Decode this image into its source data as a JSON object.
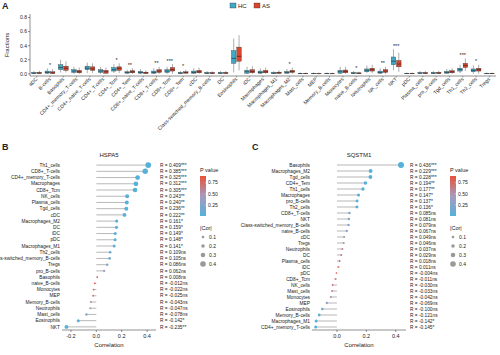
{
  "chart_data": [
    {
      "type": "box",
      "panel_label": "A",
      "y_label": "Fractions",
      "legend": "top",
      "categories": [
        "aDC",
        "B-cells",
        "Basophils",
        "CD4+_memory_T-cells",
        "CD4+_naive_T-cells",
        "CD4+_T-cells",
        "CD4+_Tcm",
        "CD4+_Tem",
        "CD8+_naive_T-cells",
        "CD8+_T-cells",
        "CD8+_Tcm",
        "CD8+_Tem",
        "cDC",
        "Class-switched_memory_B-cells",
        "DC",
        "Eosinophils",
        "iDC",
        "Macrophages",
        "Macrophages_M1",
        "Macrophages_M2",
        "Mast_cells",
        "MEP",
        "Memory_B-cells",
        "Monocytes",
        "naive_B-cells",
        "Neutrophils",
        "NK_cells",
        "NKT",
        "pDC",
        "Plasma_cells",
        "pro_B-cells",
        "Tgd_cells",
        "Th1_cells",
        "Th2_cells",
        "Tregs"
      ],
      "series": [
        {
          "name": "HC",
          "color": "#3fa8c6",
          "min": [
            0,
            0,
            0.02,
            0,
            0.01,
            0,
            0.01,
            0,
            0,
            0,
            0,
            0,
            0,
            0,
            0,
            0.02,
            0,
            0,
            0,
            0,
            0,
            0,
            0,
            0,
            0,
            0.01,
            0,
            0.05,
            0,
            0,
            0,
            0,
            0.01,
            0,
            0
          ],
          "q1": [
            0.005,
            0.01,
            0.06,
            0.02,
            0.06,
            0.02,
            0.04,
            0.01,
            0.01,
            0.01,
            0.02,
            0.005,
            0.01,
            0.005,
            0.005,
            0.15,
            0.01,
            0.01,
            0.005,
            0.01,
            0.002,
            0.002,
            0.002,
            0.01,
            0.005,
            0.03,
            0.01,
            0.13,
            0.002,
            0.005,
            0.005,
            0.01,
            0.04,
            0.03,
            0.002
          ],
          "median": [
            0.01,
            0.02,
            0.09,
            0.04,
            0.08,
            0.04,
            0.06,
            0.02,
            0.02,
            0.02,
            0.04,
            0.01,
            0.02,
            0.01,
            0.01,
            0.22,
            0.03,
            0.02,
            0.01,
            0.02,
            0.005,
            0.005,
            0.005,
            0.03,
            0.01,
            0.05,
            0.02,
            0.18,
            0.005,
            0.01,
            0.01,
            0.02,
            0.06,
            0.05,
            0.005
          ],
          "q3": [
            0.02,
            0.04,
            0.13,
            0.06,
            0.11,
            0.06,
            0.09,
            0.03,
            0.035,
            0.04,
            0.06,
            0.02,
            0.04,
            0.02,
            0.02,
            0.33,
            0.05,
            0.04,
            0.02,
            0.035,
            0.01,
            0.01,
            0.01,
            0.05,
            0.02,
            0.07,
            0.04,
            0.24,
            0.01,
            0.02,
            0.02,
            0.035,
            0.08,
            0.07,
            0.01
          ],
          "max": [
            0.04,
            0.08,
            0.2,
            0.1,
            0.16,
            0.1,
            0.14,
            0.06,
            0.07,
            0.08,
            0.1,
            0.04,
            0.08,
            0.04,
            0.04,
            0.5,
            0.1,
            0.08,
            0.04,
            0.07,
            0.02,
            0.02,
            0.02,
            0.1,
            0.04,
            0.12,
            0.08,
            0.35,
            0.02,
            0.04,
            0.04,
            0.07,
            0.13,
            0.12,
            0.02
          ]
        },
        {
          "name": "AS",
          "color": "#d9452e",
          "min": [
            0,
            0,
            0.02,
            0,
            0.01,
            0,
            0.01,
            0,
            0,
            0,
            0,
            0,
            0,
            0,
            0,
            0.05,
            0,
            0,
            0,
            0,
            0,
            0,
            0,
            0,
            0,
            0.01,
            0,
            0.03,
            0,
            0,
            0,
            0,
            0.04,
            0,
            0
          ],
          "q1": [
            0.005,
            0.005,
            0.05,
            0.015,
            0.05,
            0.01,
            0.05,
            0.015,
            0.005,
            0.02,
            0.04,
            0.01,
            0.015,
            0.005,
            0.005,
            0.18,
            0.015,
            0.015,
            0.008,
            0.02,
            0.002,
            0.002,
            0.002,
            0.015,
            0.004,
            0.04,
            0.02,
            0.1,
            0.002,
            0.005,
            0.005,
            0.015,
            0.09,
            0.04,
            0.002
          ],
          "median": [
            0.012,
            0.015,
            0.08,
            0.03,
            0.07,
            0.03,
            0.08,
            0.03,
            0.015,
            0.04,
            0.06,
            0.02,
            0.03,
            0.01,
            0.012,
            0.25,
            0.035,
            0.03,
            0.015,
            0.035,
            0.005,
            0.004,
            0.004,
            0.035,
            0.008,
            0.06,
            0.04,
            0.14,
            0.005,
            0.01,
            0.012,
            0.03,
            0.12,
            0.06,
            0.005
          ],
          "q3": [
            0.022,
            0.03,
            0.11,
            0.05,
            0.1,
            0.05,
            0.1,
            0.045,
            0.025,
            0.06,
            0.09,
            0.03,
            0.05,
            0.02,
            0.02,
            0.38,
            0.06,
            0.05,
            0.025,
            0.05,
            0.01,
            0.008,
            0.008,
            0.055,
            0.015,
            0.08,
            0.06,
            0.19,
            0.01,
            0.02,
            0.022,
            0.045,
            0.15,
            0.08,
            0.01
          ],
          "max": [
            0.045,
            0.07,
            0.18,
            0.09,
            0.15,
            0.09,
            0.15,
            0.08,
            0.05,
            0.1,
            0.14,
            0.06,
            0.09,
            0.035,
            0.04,
            0.55,
            0.11,
            0.09,
            0.05,
            0.09,
            0.02,
            0.018,
            0.018,
            0.1,
            0.03,
            0.13,
            0.1,
            0.3,
            0.02,
            0.04,
            0.045,
            0.08,
            0.22,
            0.13,
            0.02
          ]
        }
      ],
      "ylim": [
        -0.03,
        0.85
      ],
      "yticks": [
        {
          "value": 0,
          "label": "0.0"
        },
        0.2,
        0.4,
        0.6,
        0.8
      ],
      "annotations": [
        {
          "category": "B-cells",
          "text": "*"
        },
        {
          "category": "CD4+_Tcm",
          "text": "*"
        },
        {
          "category": "CD4+_Tem",
          "text": "**"
        },
        {
          "category": "CD8+_T-cells",
          "text": "**"
        },
        {
          "category": "CD8+_Tcm",
          "text": "***"
        },
        {
          "category": "CD8+_Tem",
          "text": "*"
        },
        {
          "category": "Macrophages_M2",
          "text": "*"
        },
        {
          "category": "naive_B-cells",
          "text": "*"
        },
        {
          "category": "NK_cells",
          "text": "**"
        },
        {
          "category": "NKT",
          "text": "***"
        },
        {
          "category": "Th1_cells",
          "text": "***"
        },
        {
          "category": "Th2_cells",
          "text": "*"
        }
      ]
    },
    {
      "type": "lollipop",
      "panel_label": "B",
      "title": "HSPA5",
      "x_label": "Correlation",
      "orientation": "horizontal",
      "categories": [
        "Th1_cells",
        "CD8+_T-cells",
        "CD4+_memory_T-cells",
        "Macrophages",
        "CD8+_Tcm",
        "NK_cells",
        "Plasma_cells",
        "Tgd_cells",
        "cDC",
        "Macrophages_M2",
        "DC",
        "iDC",
        "pDC",
        "Macrophages_M1",
        "Th2_cells",
        "Class-switched_memory_B-cells",
        "Tregs",
        "pro_B-cells",
        "Basophils",
        "naive_B-cells",
        "Monocytes",
        "MEP",
        "Memory_B-cells",
        "Neutrophils",
        "Mast_cells",
        "Eosinophils",
        "NKT"
      ],
      "values": [
        0.409,
        0.385,
        0.325,
        0.312,
        0.305,
        0.243,
        0.24,
        0.236,
        0.222,
        0.161,
        0.159,
        0.149,
        0.148,
        0.141,
        0.109,
        0.105,
        0.086,
        0.062,
        0.008,
        -0.012,
        -0.022,
        -0.025,
        -0.043,
        -0.047,
        -0.078,
        -0.142,
        -0.235
      ],
      "value_labels": [
        "R = 0.409***",
        "R = 0.385***",
        "R = 0.325***",
        "R = 0.312***",
        "R = 0.305***",
        "R = 0.243**",
        "R = 0.240**",
        "R = 0.236**",
        "R = 0.222**",
        "R = 0.161*",
        "R = 0.159*",
        "R = 0.149*",
        "R = 0.148*",
        "R = 0.141*",
        "R = 0.109ns",
        "R = 0.105ns",
        "R = 0.086ns",
        "R = 0.062ns",
        "R = 0.008ns",
        "R = -0.012ns",
        "R = -0.022ns",
        "R = -0.025ns",
        "R = -0.043ns",
        "R = -0.047ns",
        "R = -0.078ns",
        "R = -0.142*",
        "R = -0.235**"
      ],
      "p_values": [
        0.0001,
        0.0001,
        0.0001,
        0.0001,
        0.0001,
        0.002,
        0.002,
        0.003,
        0.004,
        0.02,
        0.02,
        0.03,
        0.03,
        0.04,
        0.12,
        0.14,
        0.22,
        0.38,
        0.88,
        0.85,
        0.75,
        0.72,
        0.54,
        0.5,
        0.27,
        0.04,
        0.001
      ],
      "xlim": [
        -0.27,
        0.47
      ],
      "xticks": [
        -0.2,
        {
          "value": 0,
          "label": "0.0"
        },
        0.2,
        0.4
      ],
      "colorbar": {
        "title": "P value",
        "range": [
          0,
          0.9
        ],
        "ticks": [
          0.25,
          {
            "value": 0.5,
            "label": "0.50"
          },
          0.75
        ]
      },
      "size_legend": {
        "title": "|Cor|",
        "values": [
          0.1,
          0.2,
          0.3,
          0.4
        ]
      }
    },
    {
      "type": "lollipop",
      "panel_label": "C",
      "title": "SQSTM1",
      "x_label": "Correlation",
      "orientation": "horizontal",
      "categories": [
        "Basophils",
        "Macrophages_M2",
        "Tgd_cells",
        "CD4+_Tem",
        "Th1_cells",
        "Macrophages",
        "pro_B-cells",
        "Th2_cells",
        "CD8+_T-cells",
        "NKT",
        "Class-switched_memory_B-cells",
        "naive_B-cells",
        "cDC",
        "Tregs",
        "Neutrophils",
        "DC",
        "Plasma_cells",
        "iDC",
        "pDC",
        "CD8+_Tcm",
        "NK_cells",
        "Mast_cells",
        "Monocytes",
        "MEP",
        "Eosinophils",
        "Memory_B-cells",
        "Macrophages_M1",
        "CD4+_memory_T-cells"
      ],
      "values": [
        0.436,
        0.229,
        0.228,
        0.194,
        0.177,
        0.147,
        0.137,
        0.136,
        0.085,
        0.081,
        0.079,
        0.067,
        0.049,
        0.046,
        0.037,
        0.029,
        0.018,
        0.011,
        -0.004,
        -0.011,
        -0.03,
        -0.033,
        -0.042,
        -0.069,
        -0.1,
        -0.121,
        -0.142,
        -0.145
      ],
      "value_labels": [
        "R = 0.436***",
        "R = 0.229***",
        "R = 0.228***",
        "R = 0.194**",
        "R = 0.177**",
        "R = 0.147*",
        "R = 0.137*",
        "R = 0.136*",
        "R = 0.085ns",
        "R = 0.081ns",
        "R = 0.079ns",
        "R = 0.067ns",
        "R = 0.049ns",
        "R = 0.046ns",
        "R = 0.037ns",
        "R = 0.029ns",
        "R = 0.018ns",
        "R = 0.011ns",
        "R = -0.004ns",
        "R = -0.011ns",
        "R = -0.030ns",
        "R = -0.033ns",
        "R = -0.042ns",
        "R = -0.069ns",
        "R = -0.100ns",
        "R = -0.121ns",
        "R = -0.142*",
        "R = -0.145*"
      ],
      "p_values": [
        0.0001,
        0.0008,
        0.0009,
        0.004,
        0.008,
        0.03,
        0.04,
        0.045,
        0.22,
        0.24,
        0.26,
        0.33,
        0.5,
        0.52,
        0.6,
        0.68,
        0.8,
        0.87,
        0.95,
        0.87,
        0.67,
        0.64,
        0.55,
        0.33,
        0.16,
        0.08,
        0.04,
        0.035
      ],
      "xlim": [
        -0.17,
        0.47
      ],
      "xticks": [
        {
          "value": 0,
          "label": "0.0"
        },
        0.2,
        0.4
      ],
      "colorbar": {
        "title": "P value",
        "range": [
          0,
          0.9
        ],
        "ticks": [
          0.25,
          {
            "value": 0.5,
            "label": "0.50"
          },
          0.75
        ]
      },
      "size_legend": {
        "title": "|Cor|",
        "values": [
          0.1,
          0.2,
          0.3,
          0.4
        ]
      }
    }
  ]
}
